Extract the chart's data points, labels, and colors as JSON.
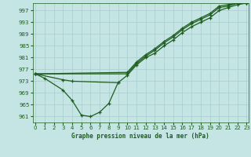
{
  "title": "Graphe pression niveau de la mer (hPa)",
  "bg_color": "#c5e5e5",
  "grid_color": "#a8cece",
  "line_color": "#1e5c1e",
  "xlim": [
    -0.3,
    23.2
  ],
  "ylim": [
    959,
    999.5
  ],
  "ytick_vals": [
    961,
    965,
    969,
    973,
    977,
    981,
    985,
    989,
    993,
    997
  ],
  "xtick_vals": [
    0,
    1,
    2,
    3,
    4,
    5,
    6,
    7,
    8,
    9,
    10,
    11,
    12,
    13,
    14,
    15,
    16,
    17,
    18,
    19,
    20,
    21,
    22,
    23
  ],
  "series": [
    {
      "x": [
        0,
        1,
        3,
        4,
        5,
        6,
        7,
        8,
        9
      ],
      "y": [
        975.5,
        974.0,
        970.0,
        966.5,
        961.5,
        961.0,
        962.5,
        965.5,
        972.5
      ]
    },
    {
      "x": [
        0,
        3,
        4,
        9,
        10,
        11,
        12,
        13,
        14,
        15,
        16,
        17,
        18,
        19,
        20,
        21,
        22,
        23
      ],
      "y": [
        975.5,
        973.5,
        973.0,
        972.5,
        975.0,
        978.5,
        981.0,
        982.5,
        985.0,
        987.0,
        989.5,
        991.5,
        993.0,
        994.5,
        997.0,
        998.0,
        999.0,
        999.5
      ]
    },
    {
      "x": [
        0,
        10,
        11,
        12,
        13,
        14,
        15,
        16,
        17,
        18,
        19,
        20,
        21,
        22,
        23
      ],
      "y": [
        975.5,
        975.5,
        979.0,
        981.5,
        983.5,
        986.0,
        988.0,
        990.5,
        992.5,
        994.0,
        995.5,
        998.0,
        998.5,
        999.5,
        999.5
      ]
    },
    {
      "x": [
        0,
        10,
        11,
        12,
        13,
        14,
        15,
        16,
        17,
        18,
        19,
        20,
        21,
        22,
        23
      ],
      "y": [
        975.5,
        976.0,
        979.5,
        982.0,
        984.0,
        986.5,
        988.5,
        991.0,
        993.0,
        994.5,
        996.0,
        998.5,
        999.0,
        999.5,
        999.5
      ]
    }
  ],
  "ylabel_fontsize": 5.5,
  "tick_fontsize": 5.0,
  "linewidth": 0.9,
  "markersize": 3.0
}
